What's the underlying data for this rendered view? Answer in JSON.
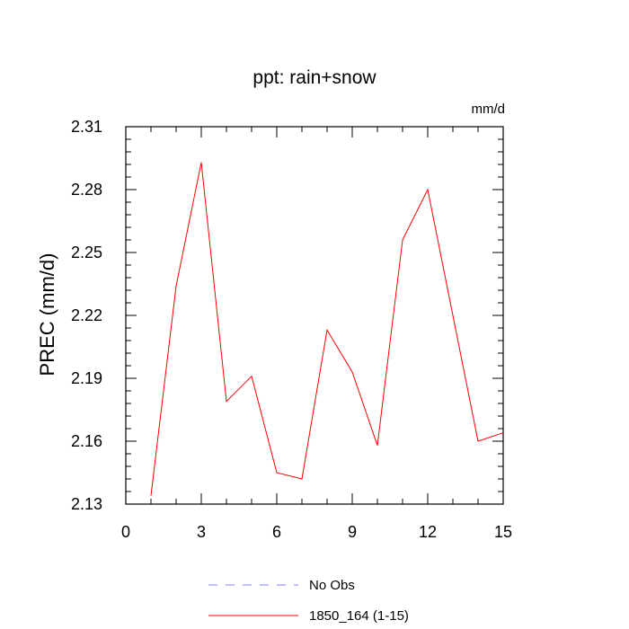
{
  "chart_data": {
    "type": "line",
    "title": "ppt: rain+snow",
    "units": "mm/d",
    "ylabel": "PREC  (mm/d)",
    "xlabel": "",
    "xlim": [
      0,
      15
    ],
    "ylim": [
      2.13,
      2.31
    ],
    "x_ticks": [
      0,
      3,
      6,
      9,
      12,
      15
    ],
    "y_ticks": [
      2.13,
      2.16,
      2.19,
      2.22,
      2.25,
      2.28,
      2.31
    ],
    "y_tick_labels": [
      "2.13",
      "2.16",
      "2.19",
      "2.22",
      "2.25",
      "2.28",
      "2.31"
    ],
    "grid": false,
    "legend_position": "bottom",
    "series": [
      {
        "name": "1850_164 (1-15)",
        "color": "#ff0000",
        "dash": "solid",
        "x": [
          1,
          2,
          3,
          4,
          5,
          6,
          7,
          8,
          9,
          10,
          11,
          12,
          13,
          14,
          15
        ],
        "y": [
          2.134,
          2.234,
          2.293,
          2.179,
          2.191,
          2.145,
          2.142,
          2.213,
          2.193,
          2.158,
          2.256,
          2.28,
          2.22,
          2.16,
          2.164
        ]
      }
    ],
    "legend": [
      {
        "label": "No Obs",
        "color": "#8080ff",
        "dash": "dashed"
      },
      {
        "label": "1850_164 (1-15)",
        "color": "#ff0000",
        "dash": "solid"
      }
    ]
  }
}
